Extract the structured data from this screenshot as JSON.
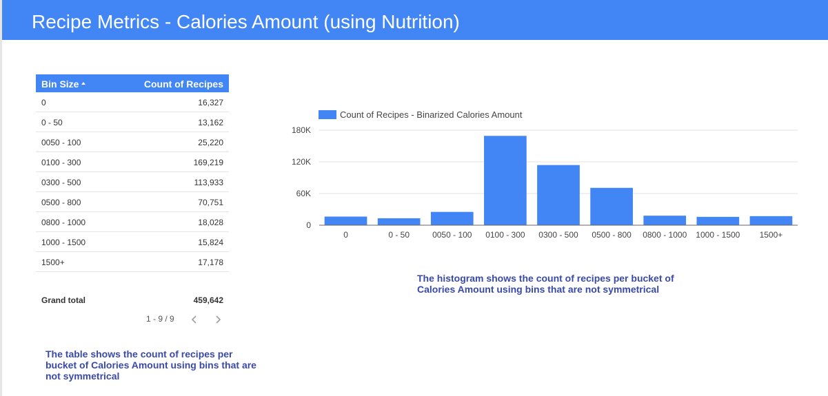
{
  "header": {
    "title": "Recipe Metrics - Calories Amount (using Nutrition)"
  },
  "colors": {
    "accent": "#4285f4",
    "note_text": "#3949ab"
  },
  "table": {
    "columns": [
      "Bin Size",
      "Count of Recipes"
    ],
    "sort_indicator": "chevron-up-icon",
    "rows": [
      {
        "bin": "0",
        "count": "16,327"
      },
      {
        "bin": "0 - 50",
        "count": "13,162"
      },
      {
        "bin": "0050 - 100",
        "count": "25,220"
      },
      {
        "bin": "0100 - 300",
        "count": "169,219"
      },
      {
        "bin": "0300 - 500",
        "count": "113,933"
      },
      {
        "bin": "0500 - 800",
        "count": "70,751"
      },
      {
        "bin": "0800 - 1000",
        "count": "18,028"
      },
      {
        "bin": "1000 - 1500",
        "count": "15,824"
      },
      {
        "bin": "1500+",
        "count": "17,178"
      }
    ],
    "grand_total_label": "Grand total",
    "grand_total_value": "459,642",
    "pager_text": "1 - 9 / 9"
  },
  "notes": {
    "table_note": "The table shows the count of recipes per bucket of Calories Amount using bins that are not symmetrical",
    "chart_note": "The histogram shows the count of recipes per bucket of Calories Amount using bins that are not symmetrical"
  },
  "chart_data": {
    "type": "bar",
    "title": "",
    "xlabel": "",
    "ylabel": "",
    "categories": [
      "0",
      "0 - 50",
      "0050 - 100",
      "0100 - 300",
      "0300 - 500",
      "0500 - 800",
      "0800 - 1000",
      "1000 - 1500",
      "1500+"
    ],
    "series": [
      {
        "name": "Count of Recipes - Binarized Calories Amount",
        "values": [
          16327,
          13162,
          25220,
          169219,
          113933,
          70751,
          18028,
          15824,
          17178
        ]
      }
    ],
    "yticks": [
      0,
      60000,
      120000,
      180000
    ],
    "ytick_labels": [
      "0",
      "60K",
      "120K",
      "180K"
    ],
    "ylim": [
      0,
      180000
    ],
    "grid": true,
    "legend_position": "top-left"
  }
}
